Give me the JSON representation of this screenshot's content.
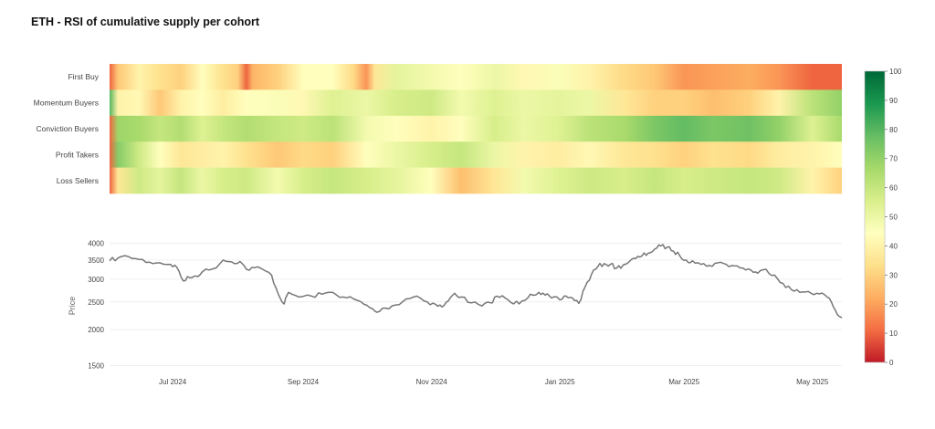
{
  "title": "ETH - RSI of cumulative supply per cohort",
  "chart_data": [
    {
      "type": "heatmap",
      "rows": [
        "First Buy",
        "Momentum Buyers",
        "Conviction Buyers",
        "Profit Takers",
        "Loss Sellers"
      ],
      "x_start": "2024-06-01",
      "x_end": "2025-05-15",
      "colorbar": {
        "min": 0,
        "max": 100,
        "ticks": [
          0,
          10,
          20,
          30,
          40,
          50,
          60,
          70,
          80,
          90,
          100
        ],
        "colors": [
          "#c01a27",
          "#f46d43",
          "#fdae61",
          "#fee08b",
          "#ffffbf",
          "#d9ef8b",
          "#a6d96a",
          "#66bd63",
          "#1a9850",
          "#006837"
        ]
      },
      "segments": [
        {
          "row": "First Buy",
          "values": [
            [
              "2024-06-01",
              10
            ],
            [
              "2024-06-05",
              28
            ],
            [
              "2024-06-15",
              40
            ],
            [
              "2024-06-25",
              34
            ],
            [
              "2024-07-05",
              30
            ],
            [
              "2024-07-15",
              44
            ],
            [
              "2024-07-25",
              34
            ],
            [
              "2024-08-01",
              30
            ],
            [
              "2024-08-05",
              10
            ],
            [
              "2024-08-08",
              24
            ],
            [
              "2024-08-20",
              30
            ],
            [
              "2024-09-01",
              44
            ],
            [
              "2024-09-15",
              44
            ],
            [
              "2024-09-25",
              32
            ],
            [
              "2024-10-01",
              18
            ],
            [
              "2024-10-05",
              36
            ],
            [
              "2024-10-15",
              52
            ],
            [
              "2024-11-01",
              48
            ],
            [
              "2024-11-15",
              44
            ],
            [
              "2024-12-01",
              50
            ],
            [
              "2024-12-15",
              42
            ],
            [
              "2025-01-01",
              46
            ],
            [
              "2025-01-15",
              40
            ],
            [
              "2025-02-01",
              32
            ],
            [
              "2025-02-15",
              28
            ],
            [
              "2025-03-01",
              18
            ],
            [
              "2025-03-15",
              20
            ],
            [
              "2025-04-01",
              22
            ],
            [
              "2025-04-15",
              18
            ],
            [
              "2025-05-01",
              10
            ],
            [
              "2025-05-15",
              10
            ]
          ]
        },
        {
          "row": "Momentum Buyers",
          "values": [
            [
              "2024-06-01",
              80
            ],
            [
              "2024-06-05",
              40
            ],
            [
              "2024-06-15",
              42
            ],
            [
              "2024-06-25",
              28
            ],
            [
              "2024-07-05",
              40
            ],
            [
              "2024-07-15",
              44
            ],
            [
              "2024-07-25",
              38
            ],
            [
              "2024-08-05",
              44
            ],
            [
              "2024-08-20",
              46
            ],
            [
              "2024-09-01",
              42
            ],
            [
              "2024-09-15",
              54
            ],
            [
              "2024-10-01",
              50
            ],
            [
              "2024-10-15",
              56
            ],
            [
              "2024-11-01",
              58
            ],
            [
              "2024-11-15",
              48
            ],
            [
              "2024-12-01",
              54
            ],
            [
              "2024-12-15",
              50
            ],
            [
              "2025-01-01",
              52
            ],
            [
              "2025-01-15",
              50
            ],
            [
              "2025-02-01",
              36
            ],
            [
              "2025-02-15",
              30
            ],
            [
              "2025-03-01",
              30
            ],
            [
              "2025-03-15",
              26
            ],
            [
              "2025-04-01",
              30
            ],
            [
              "2025-04-15",
              40
            ],
            [
              "2025-05-01",
              62
            ],
            [
              "2025-05-15",
              70
            ]
          ]
        },
        {
          "row": "Conviction Buyers",
          "values": [
            [
              "2024-06-01",
              10
            ],
            [
              "2024-06-05",
              68
            ],
            [
              "2024-06-15",
              66
            ],
            [
              "2024-06-25",
              60
            ],
            [
              "2024-07-05",
              64
            ],
            [
              "2024-07-15",
              54
            ],
            [
              "2024-07-25",
              60
            ],
            [
              "2024-08-05",
              64
            ],
            [
              "2024-08-20",
              60
            ],
            [
              "2024-09-01",
              58
            ],
            [
              "2024-09-15",
              62
            ],
            [
              "2024-10-01",
              48
            ],
            [
              "2024-10-15",
              44
            ],
            [
              "2024-11-01",
              40
            ],
            [
              "2024-11-15",
              44
            ],
            [
              "2024-12-01",
              56
            ],
            [
              "2024-12-15",
              50
            ],
            [
              "2025-01-01",
              54
            ],
            [
              "2025-01-15",
              62
            ],
            [
              "2025-02-01",
              66
            ],
            [
              "2025-02-15",
              74
            ],
            [
              "2025-03-01",
              78
            ],
            [
              "2025-03-15",
              74
            ],
            [
              "2025-04-01",
              76
            ],
            [
              "2025-04-15",
              70
            ],
            [
              "2025-05-01",
              54
            ],
            [
              "2025-05-15",
              66
            ]
          ]
        },
        {
          "row": "Profit Takers",
          "values": [
            [
              "2024-06-01",
              10
            ],
            [
              "2024-06-05",
              72
            ],
            [
              "2024-06-15",
              58
            ],
            [
              "2024-06-25",
              44
            ],
            [
              "2024-07-05",
              36
            ],
            [
              "2024-07-15",
              38
            ],
            [
              "2024-07-25",
              40
            ],
            [
              "2024-08-05",
              34
            ],
            [
              "2024-08-20",
              28
            ],
            [
              "2024-09-01",
              32
            ],
            [
              "2024-09-15",
              30
            ],
            [
              "2024-10-01",
              44
            ],
            [
              "2024-10-15",
              50
            ],
            [
              "2024-11-01",
              56
            ],
            [
              "2024-11-15",
              60
            ],
            [
              "2024-12-01",
              50
            ],
            [
              "2024-12-15",
              40
            ],
            [
              "2025-01-01",
              38
            ],
            [
              "2025-01-15",
              42
            ],
            [
              "2025-02-01",
              36
            ],
            [
              "2025-02-15",
              34
            ],
            [
              "2025-03-01",
              30
            ],
            [
              "2025-03-15",
              34
            ],
            [
              "2025-04-01",
              32
            ],
            [
              "2025-04-15",
              38
            ],
            [
              "2025-05-01",
              40
            ],
            [
              "2025-05-15",
              44
            ]
          ]
        },
        {
          "row": "Loss Sellers",
          "values": [
            [
              "2024-06-01",
              10
            ],
            [
              "2024-06-05",
              36
            ],
            [
              "2024-06-15",
              58
            ],
            [
              "2024-06-25",
              52
            ],
            [
              "2024-07-05",
              60
            ],
            [
              "2024-07-15",
              50
            ],
            [
              "2024-07-25",
              56
            ],
            [
              "2024-08-05",
              58
            ],
            [
              "2024-08-20",
              48
            ],
            [
              "2024-09-01",
              56
            ],
            [
              "2024-09-15",
              60
            ],
            [
              "2024-10-01",
              56
            ],
            [
              "2024-10-15",
              52
            ],
            [
              "2024-11-01",
              44
            ],
            [
              "2024-11-15",
              26
            ],
            [
              "2024-12-01",
              36
            ],
            [
              "2024-12-15",
              48
            ],
            [
              "2025-01-01",
              54
            ],
            [
              "2025-01-15",
              58
            ],
            [
              "2025-02-01",
              56
            ],
            [
              "2025-02-15",
              60
            ],
            [
              "2025-03-01",
              56
            ],
            [
              "2025-03-15",
              58
            ],
            [
              "2025-04-01",
              60
            ],
            [
              "2025-04-15",
              58
            ],
            [
              "2025-05-01",
              40
            ],
            [
              "2025-05-15",
              30
            ]
          ]
        }
      ]
    },
    {
      "type": "line",
      "ylabel": "Price",
      "y_scale": "log",
      "ylim": [
        1450,
        4050
      ],
      "y_ticks": [
        1500,
        2000,
        2500,
        3000,
        3500,
        4000
      ],
      "x_ticks": [
        {
          "date": "2024-07-01",
          "label": "Jul 2024"
        },
        {
          "date": "2024-09-01",
          "label": "Sep 2024"
        },
        {
          "date": "2024-11-01",
          "label": "Nov 2024"
        },
        {
          "date": "2025-01-01",
          "label": "Jan 2025"
        },
        {
          "date": "2025-03-01",
          "label": "Mar 2025"
        },
        {
          "date": "2025-05-01",
          "label": "May 2025"
        }
      ],
      "grid": true,
      "series": [
        {
          "name": "",
          "color": "#777777",
          "points": [
            [
              "2024-06-01",
              3480
            ],
            [
              "2024-06-05",
              3560
            ],
            [
              "2024-06-10",
              3600
            ],
            [
              "2024-06-15",
              3520
            ],
            [
              "2024-06-20",
              3440
            ],
            [
              "2024-06-25",
              3420
            ],
            [
              "2024-06-30",
              3380
            ],
            [
              "2024-07-03",
              3300
            ],
            [
              "2024-07-06",
              2960
            ],
            [
              "2024-07-09",
              3040
            ],
            [
              "2024-07-12",
              3080
            ],
            [
              "2024-07-15",
              3180
            ],
            [
              "2024-07-20",
              3260
            ],
            [
              "2024-07-25",
              3500
            ],
            [
              "2024-07-29",
              3450
            ],
            [
              "2024-08-02",
              3460
            ],
            [
              "2024-08-05",
              3250
            ],
            [
              "2024-08-09",
              3290
            ],
            [
              "2024-08-13",
              3240
            ],
            [
              "2024-08-17",
              3100
            ],
            [
              "2024-08-20",
              2680
            ],
            [
              "2024-08-23",
              2460
            ],
            [
              "2024-08-25",
              2700
            ],
            [
              "2024-08-30",
              2600
            ],
            [
              "2024-09-05",
              2620
            ],
            [
              "2024-09-10",
              2660
            ],
            [
              "2024-09-15",
              2700
            ],
            [
              "2024-09-20",
              2600
            ],
            [
              "2024-09-25",
              2560
            ],
            [
              "2024-09-30",
              2450
            ],
            [
              "2024-10-03",
              2380
            ],
            [
              "2024-10-06",
              2300
            ],
            [
              "2024-10-10",
              2380
            ],
            [
              "2024-10-15",
              2440
            ],
            [
              "2024-10-20",
              2560
            ],
            [
              "2024-10-25",
              2620
            ],
            [
              "2024-10-30",
              2500
            ],
            [
              "2024-11-03",
              2450
            ],
            [
              "2024-11-06",
              2400
            ],
            [
              "2024-11-09",
              2520
            ],
            [
              "2024-11-12",
              2680
            ],
            [
              "2024-11-15",
              2600
            ],
            [
              "2024-11-20",
              2480
            ],
            [
              "2024-11-25",
              2420
            ],
            [
              "2024-11-29",
              2480
            ],
            [
              "2024-12-02",
              2620
            ],
            [
              "2024-12-06",
              2580
            ],
            [
              "2024-12-10",
              2460
            ],
            [
              "2024-12-14",
              2520
            ],
            [
              "2024-12-18",
              2660
            ],
            [
              "2024-12-22",
              2700
            ],
            [
              "2024-12-25",
              2640
            ],
            [
              "2024-12-28",
              2580
            ],
            [
              "2025-01-01",
              2540
            ],
            [
              "2025-01-04",
              2620
            ],
            [
              "2025-01-07",
              2580
            ],
            [
              "2025-01-10",
              2470
            ],
            [
              "2025-01-13",
              2820
            ],
            [
              "2025-01-16",
              3120
            ],
            [
              "2025-01-19",
              3320
            ],
            [
              "2025-01-22",
              3400
            ],
            [
              "2025-01-25",
              3380
            ],
            [
              "2025-01-28",
              3280
            ],
            [
              "2025-01-31",
              3360
            ],
            [
              "2025-02-03",
              3460
            ],
            [
              "2025-02-06",
              3540
            ],
            [
              "2025-02-09",
              3620
            ],
            [
              "2025-02-12",
              3700
            ],
            [
              "2025-02-15",
              3820
            ],
            [
              "2025-02-18",
              3920
            ],
            [
              "2025-02-21",
              3880
            ],
            [
              "2025-02-24",
              3760
            ],
            [
              "2025-02-27",
              3620
            ],
            [
              "2025-03-02",
              3500
            ],
            [
              "2025-03-05",
              3480
            ],
            [
              "2025-03-09",
              3380
            ],
            [
              "2025-03-13",
              3350
            ],
            [
              "2025-03-17",
              3420
            ],
            [
              "2025-03-21",
              3380
            ],
            [
              "2025-03-25",
              3340
            ],
            [
              "2025-03-29",
              3280
            ],
            [
              "2025-04-02",
              3220
            ],
            [
              "2025-04-05",
              3150
            ],
            [
              "2025-04-09",
              3250
            ],
            [
              "2025-04-13",
              3100
            ],
            [
              "2025-04-17",
              2900
            ],
            [
              "2025-04-21",
              2760
            ],
            [
              "2025-04-25",
              2700
            ],
            [
              "2025-04-29",
              2720
            ],
            [
              "2025-05-03",
              2680
            ],
            [
              "2025-05-07",
              2640
            ],
            [
              "2025-05-10",
              2500
            ],
            [
              "2025-05-13",
              2250
            ],
            [
              "2025-05-15",
              2200
            ]
          ]
        }
      ]
    }
  ]
}
